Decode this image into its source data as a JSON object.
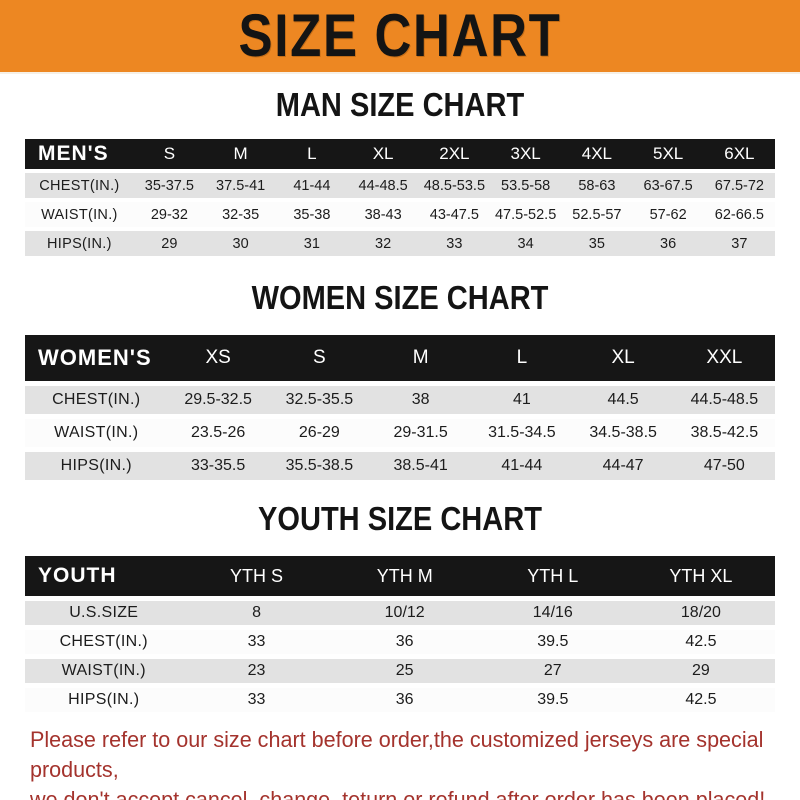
{
  "colors": {
    "banner_orange": "#ED8722",
    "table_header_black": "#161616",
    "row_stripe_gray": "#E2E2E2",
    "note_red": "#A4332D"
  },
  "banner": {
    "title": "SIZE CHART"
  },
  "sections": [
    {
      "heading": "MAN SIZE CHART",
      "table": {
        "label": "MEN'S",
        "columns": [
          "S",
          "M",
          "L",
          "XL",
          "2XL",
          "3XL",
          "4XL",
          "5XL",
          "6XL"
        ],
        "rows": [
          {
            "label": "CHEST(IN.)",
            "values": [
              "35-37.5",
              "37.5-41",
              "41-44",
              "44-48.5",
              "48.5-53.5",
              "53.5-58",
              "58-63",
              "63-67.5",
              "67.5-72"
            ]
          },
          {
            "label": "WAIST(IN.)",
            "values": [
              "29-32",
              "32-35",
              "35-38",
              "38-43",
              "43-47.5",
              "47.5-52.5",
              "52.5-57",
              "57-62",
              "62-66.5"
            ]
          },
          {
            "label": "HIPS(IN.)",
            "values": [
              "29",
              "30",
              "31",
              "32",
              "33",
              "34",
              "35",
              "36",
              "37"
            ]
          }
        ]
      }
    },
    {
      "heading": "WOMEN SIZE CHART",
      "table": {
        "label": "WOMEN'S",
        "columns": [
          "XS",
          "S",
          "M",
          "L",
          "XL",
          "XXL"
        ],
        "rows": [
          {
            "label": "CHEST(IN.)",
            "values": [
              "29.5-32.5",
              "32.5-35.5",
              "38",
              "41",
              "44.5",
              "44.5-48.5"
            ]
          },
          {
            "label": "WAIST(IN.)",
            "values": [
              "23.5-26",
              "26-29",
              "29-31.5",
              "31.5-34.5",
              "34.5-38.5",
              "38.5-42.5"
            ]
          },
          {
            "label": "HIPS(IN.)",
            "values": [
              "33-35.5",
              "35.5-38.5",
              "38.5-41",
              "41-44",
              "44-47",
              "47-50"
            ]
          }
        ]
      }
    },
    {
      "heading": "YOUTH SIZE CHART",
      "table": {
        "label": "YOUTH",
        "columns": [
          "YTH S",
          "YTH M",
          "YTH L",
          "YTH XL"
        ],
        "rows": [
          {
            "label": "U.S.SIZE",
            "values": [
              "8",
              "10/12",
              "14/16",
              "18/20"
            ]
          },
          {
            "label": "CHEST(IN.)",
            "values": [
              "33",
              "36",
              "39.5",
              "42.5"
            ]
          },
          {
            "label": "WAIST(IN.)",
            "values": [
              "23",
              "25",
              "27",
              "29"
            ]
          },
          {
            "label": "HIPS(IN.)",
            "values": [
              "33",
              "36",
              "39.5",
              "42.5"
            ]
          }
        ]
      }
    }
  ],
  "footer": {
    "line1": "Please refer to our size chart before order,the customized jerseys are special products,",
    "line2": "we don't accept cancel, change, teturn or refund after order has been placed!"
  }
}
